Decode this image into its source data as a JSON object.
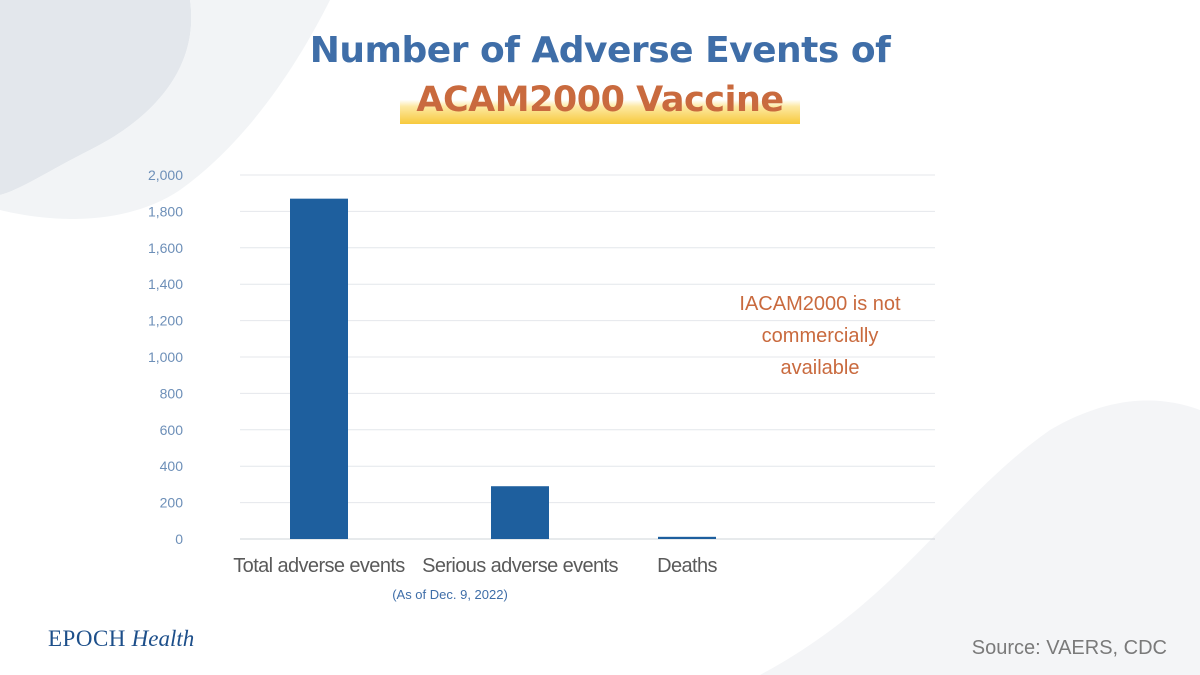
{
  "title": {
    "line1": "Number of Adverse Events of",
    "line2": "ACAM2000 Vaccine"
  },
  "annotation": {
    "line1": "IACAM2000 is not",
    "line2": "commercially available"
  },
  "note": "(As of Dec. 9, 2022)",
  "logo": {
    "brand": "EPOCH",
    "section": "Health"
  },
  "source": "Source: VAERS, CDC",
  "colors": {
    "bar": "#1e5f9e",
    "title_blue": "#3f6ea8",
    "title_orange": "#c96a3e",
    "axis_text": "#6d8fb8"
  },
  "chart_data": {
    "type": "bar",
    "categories": [
      "Total adverse events",
      "Serious adverse events",
      "Deaths"
    ],
    "values": [
      1870,
      290,
      12
    ],
    "ylim": [
      0,
      2000
    ],
    "yticks": [
      0,
      200,
      400,
      600,
      800,
      1000,
      1200,
      1400,
      1600,
      1800,
      2000
    ],
    "ytick_labels": [
      "0",
      "200",
      "400",
      "600",
      "800",
      "1,000",
      "1,200",
      "1,400",
      "1,600",
      "1,800",
      "2,000"
    ],
    "grid": true
  }
}
